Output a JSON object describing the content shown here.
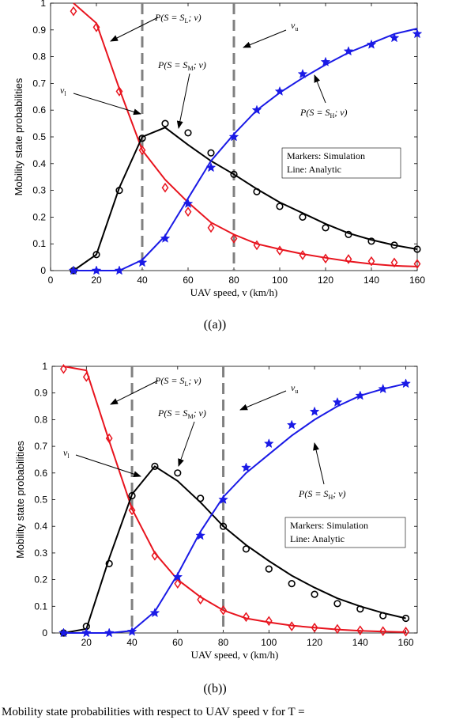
{
  "chart_data": [
    {
      "type": "line",
      "panel_label": "((a))",
      "xlabel": "UAV speed, v (km/h)",
      "ylabel": "Mobility state probabilities",
      "xlim": [
        0,
        160
      ],
      "ylim": [
        0,
        1
      ],
      "xticks": [
        0,
        20,
        40,
        60,
        80,
        100,
        120,
        140,
        160
      ],
      "yticks": [
        0,
        0.1,
        0.2,
        0.3,
        0.4,
        0.5,
        0.6,
        0.7,
        0.8,
        0.9,
        1
      ],
      "threshold_lines": [
        40,
        80
      ],
      "legend": [
        "Markers: Simulation",
        "Line: Analytic"
      ],
      "annotations": {
        "low": "P(S = S_L; v)",
        "mid": "P(S = S_M; v)",
        "high": "P(S = S_H; v)",
        "vl": "v_l",
        "vu": "v_u"
      },
      "series": [
        {
          "name": "P(S = S_L; v)",
          "color": "#e8141e",
          "marker": "diamond",
          "line": {
            "x": [
              10,
              20,
              30,
              40,
              50,
              60,
              70,
              80,
              90,
              100,
              110,
              120,
              130,
              140,
              150,
              160
            ],
            "y": [
              1.0,
              0.925,
              0.68,
              0.45,
              0.34,
              0.255,
              0.18,
              0.135,
              0.1,
              0.08,
              0.062,
              0.048,
              0.035,
              0.025,
              0.018,
              0.015
            ]
          },
          "sim": {
            "x": [
              10,
              20,
              30,
              40,
              50,
              60,
              70,
              80,
              90,
              100,
              110,
              120,
              130,
              140,
              150,
              160
            ],
            "y": [
              0.97,
              0.91,
              0.67,
              0.45,
              0.31,
              0.22,
              0.16,
              0.12,
              0.095,
              0.075,
              0.058,
              0.045,
              0.043,
              0.035,
              0.03,
              0.025
            ]
          }
        },
        {
          "name": "P(S = S_M; v)",
          "color": "#000000",
          "marker": "circle",
          "line": {
            "x": [
              10,
              20,
              30,
              40,
              50,
              60,
              70,
              80,
              90,
              100,
              110,
              120,
              130,
              140,
              150,
              160
            ],
            "y": [
              0.0,
              0.06,
              0.31,
              0.5,
              0.535,
              0.47,
              0.41,
              0.36,
              0.305,
              0.255,
              0.215,
              0.175,
              0.14,
              0.115,
              0.095,
              0.08
            ]
          },
          "sim": {
            "x": [
              10,
              20,
              30,
              40,
              50,
              60,
              70,
              80,
              90,
              100,
              110,
              120,
              130,
              140,
              150,
              160
            ],
            "y": [
              0.0,
              0.06,
              0.3,
              0.495,
              0.55,
              0.515,
              0.44,
              0.36,
              0.295,
              0.24,
              0.2,
              0.16,
              0.135,
              0.11,
              0.095,
              0.08
            ]
          }
        },
        {
          "name": "P(S = S_H; v)",
          "color": "#1a1ae6",
          "marker": "star",
          "line": {
            "x": [
              10,
              20,
              30,
              40,
              50,
              60,
              70,
              80,
              90,
              100,
              110,
              120,
              130,
              140,
              150,
              160
            ],
            "y": [
              0.0,
              0.0,
              0.0,
              0.04,
              0.13,
              0.27,
              0.41,
              0.51,
              0.6,
              0.665,
              0.72,
              0.77,
              0.815,
              0.85,
              0.885,
              0.905
            ]
          },
          "sim": {
            "x": [
              10,
              20,
              30,
              40,
              50,
              60,
              70,
              80,
              90,
              100,
              110,
              120,
              130,
              140,
              150,
              160
            ],
            "y": [
              0.0,
              0.0,
              0.0,
              0.03,
              0.12,
              0.25,
              0.385,
              0.5,
              0.6,
              0.67,
              0.735,
              0.78,
              0.82,
              0.845,
              0.87,
              0.885
            ]
          }
        }
      ]
    },
    {
      "type": "line",
      "panel_label": "((b))",
      "xlabel": "UAV speed, v (km/h)",
      "ylabel": "Mobility state probabilities",
      "xlim": [
        5,
        165
      ],
      "ylim": [
        0,
        1
      ],
      "xticks": [
        20,
        40,
        60,
        80,
        100,
        120,
        140,
        160
      ],
      "yticks": [
        0,
        0.1,
        0.2,
        0.3,
        0.4,
        0.5,
        0.6,
        0.7,
        0.8,
        0.9,
        1
      ],
      "threshold_lines": [
        40,
        80
      ],
      "legend": [
        "Markers: Simulation",
        "Line: Analytic"
      ],
      "annotations": {
        "low": "P(S = S_L; v)",
        "mid": "P(S = S_M; v)",
        "high": "P(S = S_H; v)",
        "vl": "v_l",
        "vu": "v_u"
      },
      "series": [
        {
          "name": "P(S = S_L; v)",
          "color": "#e8141e",
          "marker": "diamond",
          "line": {
            "x": [
              10,
              20,
              30,
              40,
              50,
              60,
              70,
              80,
              90,
              100,
              110,
              120,
              130,
              140,
              150,
              160
            ],
            "y": [
              1.0,
              0.985,
              0.72,
              0.465,
              0.3,
              0.2,
              0.135,
              0.085,
              0.055,
              0.04,
              0.028,
              0.02,
              0.013,
              0.008,
              0.005,
              0.003
            ]
          },
          "sim": {
            "x": [
              10,
              20,
              30,
              40,
              50,
              60,
              70,
              80,
              90,
              100,
              110,
              120,
              130,
              140,
              150,
              160
            ],
            "y": [
              0.99,
              0.96,
              0.73,
              0.46,
              0.29,
              0.185,
              0.125,
              0.085,
              0.06,
              0.045,
              0.025,
              0.02,
              0.015,
              0.01,
              0.007,
              0.005
            ]
          }
        },
        {
          "name": "P(S = S_M; v)",
          "color": "#000000",
          "marker": "circle",
          "line": {
            "x": [
              10,
              20,
              30,
              40,
              50,
              60,
              70,
              80,
              90,
              100,
              110,
              120,
              130,
              140,
              150,
              160
            ],
            "y": [
              0.0,
              0.015,
              0.28,
              0.52,
              0.625,
              0.57,
              0.49,
              0.4,
              0.33,
              0.27,
              0.215,
              0.17,
              0.13,
              0.1,
              0.075,
              0.055
            ]
          },
          "sim": {
            "x": [
              10,
              20,
              30,
              40,
              50,
              60,
              70,
              80,
              90,
              100,
              110,
              120,
              130,
              140,
              150,
              160
            ],
            "y": [
              0.0,
              0.025,
              0.26,
              0.515,
              0.625,
              0.6,
              0.505,
              0.4,
              0.315,
              0.24,
              0.185,
              0.145,
              0.11,
              0.09,
              0.065,
              0.055
            ]
          }
        },
        {
          "name": "P(S = S_H; v)",
          "color": "#1a1ae6",
          "marker": "star",
          "line": {
            "x": [
              10,
              20,
              30,
              40,
              50,
              60,
              70,
              80,
              90,
              100,
              110,
              120,
              130,
              140,
              150,
              160
            ],
            "y": [
              0.0,
              0.0,
              0.0,
              0.008,
              0.08,
              0.22,
              0.38,
              0.51,
              0.6,
              0.67,
              0.74,
              0.8,
              0.85,
              0.89,
              0.915,
              0.935
            ]
          },
          "sim": {
            "x": [
              10,
              20,
              30,
              40,
              50,
              60,
              70,
              80,
              90,
              100,
              110,
              120,
              130,
              140,
              150,
              160
            ],
            "y": [
              0.0,
              0.0,
              0.0,
              0.005,
              0.075,
              0.21,
              0.365,
              0.5,
              0.62,
              0.71,
              0.78,
              0.83,
              0.865,
              0.89,
              0.915,
              0.935
            ]
          }
        }
      ]
    }
  ],
  "caption_fragment": "Mobility state probabilities with respect to UAV speed v for T ="
}
